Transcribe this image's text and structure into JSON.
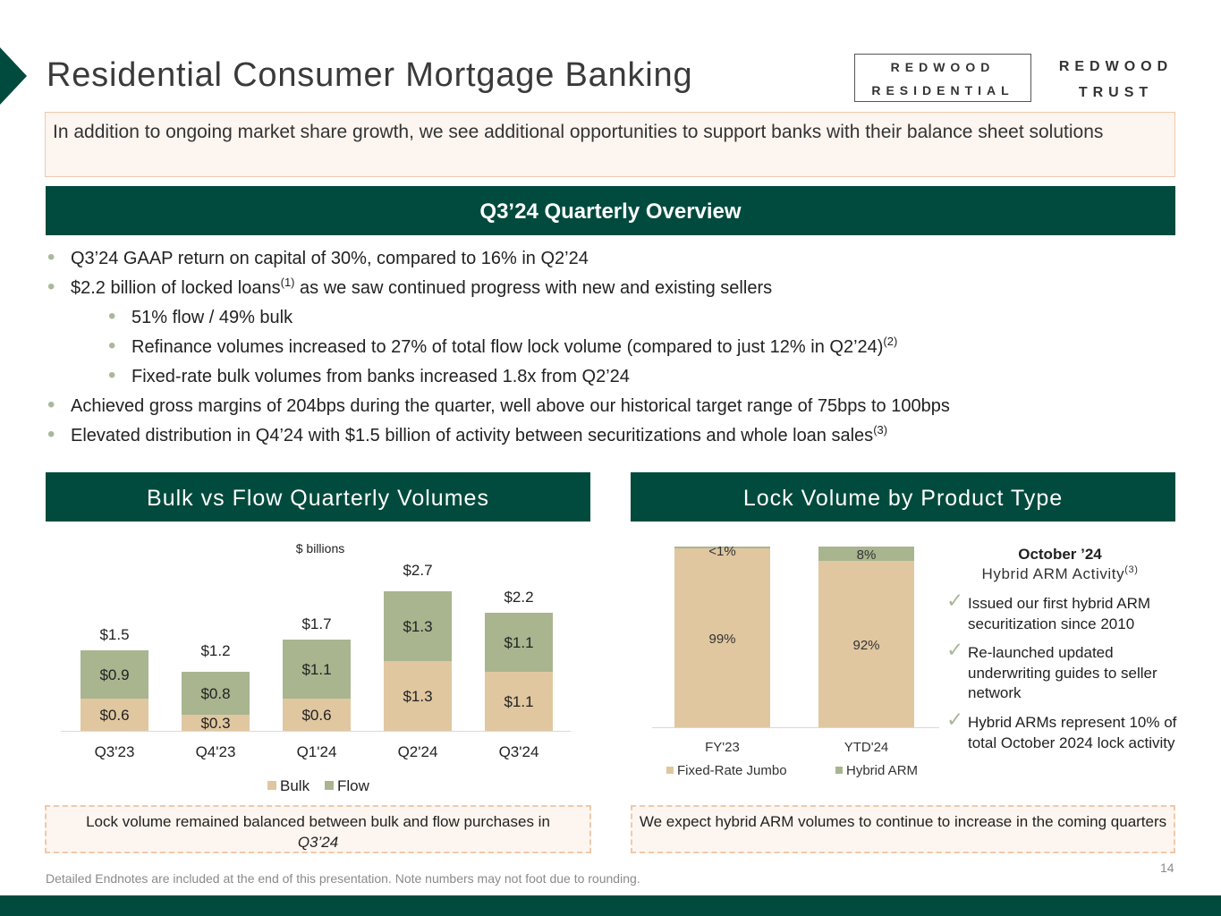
{
  "title": "Residential Consumer Mortgage Banking",
  "logos": {
    "redwood_residential": [
      "REDWOOD",
      "RESIDENTIAL"
    ],
    "redwood_trust": [
      "REDWOOD",
      "TRUST"
    ]
  },
  "intro_text": "In addition to ongoing market share growth, we see additional opportunities to support banks with their balance sheet solutions",
  "overview": {
    "header": "Q3’24 Quarterly Overview",
    "bullets": [
      {
        "text": "Q3’24 GAAP return on capital of 30%, compared to 16% in Q2’24",
        "sup": ""
      },
      {
        "text": "$2.2 billion of locked loans",
        "sup": "(1)",
        "text_after": " as we saw continued progress with new and existing sellers"
      },
      {
        "text": "51% flow / 49% bulk",
        "sup": ""
      },
      {
        "text": "Refinance volumes increased to 27% of total flow lock volume (compared to just 12% in Q2’24)",
        "sup": "(2)"
      },
      {
        "text": "Fixed-rate bulk volumes from banks increased 1.8x from Q2’24",
        "sup": ""
      },
      {
        "text": "Achieved gross margins of 204bps during the quarter, well above our historical target range of 75bps to 100bps",
        "sup": ""
      },
      {
        "text": "Elevated distribution in Q4’24 with $1.5 billion of activity between securitizations and whole loan sales",
        "sup": "(3)"
      }
    ]
  },
  "bulk_flow": {
    "header": "Bulk vs Flow Quarterly Volumes",
    "note": "Lock volume remained balanced between bulk and flow purchases in",
    "note_italic": "Q3’24"
  },
  "lock_volume": {
    "header": "Lock Volume by Product Type",
    "note": "We expect hybrid ARM volumes to continue to increase in the coming quarters"
  },
  "october": {
    "title": "October ’24",
    "subtitle": "Hybrid ARM Activity",
    "subtitle_sup": "(3)",
    "checks": [
      "Issued our first hybrid ARM securitization since 2010",
      "Re-launched updated underwriting guides to seller network",
      "Hybrid ARMs represent 10% of total October 2024 lock activity"
    ]
  },
  "check_glyph": "✓",
  "page_number": "14",
  "footnote": "Detailed Endnotes are included at the end of this presentation. Note numbers may not foot due to rounding.",
  "colors": {
    "dark_green": "#004b3d",
    "tan": "#e0c7a0",
    "sage": "#a8b58f",
    "peach_bg": "#fdf5ef",
    "peach_border": "#f0c9aa"
  },
  "chart_data": [
    {
      "type": "bar",
      "stacked": true,
      "unit_label": "$ billions",
      "categories": [
        "Q3'23",
        "Q4'23",
        "Q1'24",
        "Q2'24",
        "Q3'24"
      ],
      "series": [
        {
          "name": "Bulk",
          "values": [
            0.6,
            0.3,
            0.6,
            1.3,
            1.1
          ],
          "labels": [
            "$0.6",
            "$0.3",
            "$0.6",
            "$1.3",
            "$1.1"
          ],
          "color": "#e0c7a0"
        },
        {
          "name": "Flow",
          "values": [
            0.9,
            0.8,
            1.1,
            1.3,
            1.1
          ],
          "labels": [
            "$0.9",
            "$0.8",
            "$1.1",
            "$1.3",
            "$1.1"
          ],
          "color": "#a8b58f"
        }
      ],
      "totals": [
        "$1.5",
        "$1.2",
        "$1.7",
        "$2.7",
        "$2.2"
      ],
      "total_values": [
        1.5,
        1.2,
        1.7,
        2.7,
        2.2
      ],
      "ylim": [
        0,
        3.2
      ],
      "legend": "bottom"
    },
    {
      "type": "bar",
      "stacked": true,
      "percent": true,
      "categories": [
        "FY'23",
        "YTD'24"
      ],
      "series": [
        {
          "name": "Fixed-Rate Jumbo",
          "values": [
            99,
            92
          ],
          "labels": [
            "99%",
            "92%"
          ],
          "color": "#e0c7a0"
        },
        {
          "name": "Hybrid ARM",
          "values": [
            1,
            8
          ],
          "labels": [
            "<1%",
            "8%"
          ],
          "color": "#a8b58f"
        }
      ],
      "ylim": [
        0,
        100
      ],
      "legend": "bottom"
    }
  ]
}
